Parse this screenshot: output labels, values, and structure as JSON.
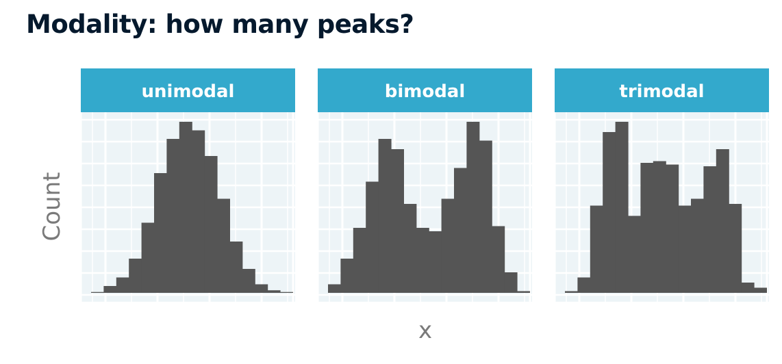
{
  "title": "Modality: how many peaks?",
  "colors": {
    "strip": "#33a9cc",
    "panel_background": "#edf4f7",
    "grid": "#ffffff",
    "bar": "#555555",
    "title": "#05192d",
    "axis_title": "#7a7a7a"
  },
  "chart_data": {
    "type": "bar",
    "xlabel": "x",
    "ylabel": "Count",
    "grid": true,
    "facets": [
      {
        "label": "unimodal",
        "values": [
          0.5,
          4,
          9,
          20,
          41,
          70,
          90,
          100,
          95,
          80,
          55,
          30,
          14,
          5,
          1.5,
          0.5
        ]
      },
      {
        "label": "bimodal",
        "values": [
          5,
          20,
          38,
          65,
          90,
          84,
          52,
          38,
          36,
          55,
          73,
          100,
          89,
          39,
          12,
          1
        ]
      },
      {
        "label": "trimodal",
        "values": [
          1,
          9,
          51,
          94,
          100,
          45,
          76,
          77,
          75,
          51,
          55,
          74,
          84,
          52,
          6,
          3
        ]
      }
    ]
  }
}
